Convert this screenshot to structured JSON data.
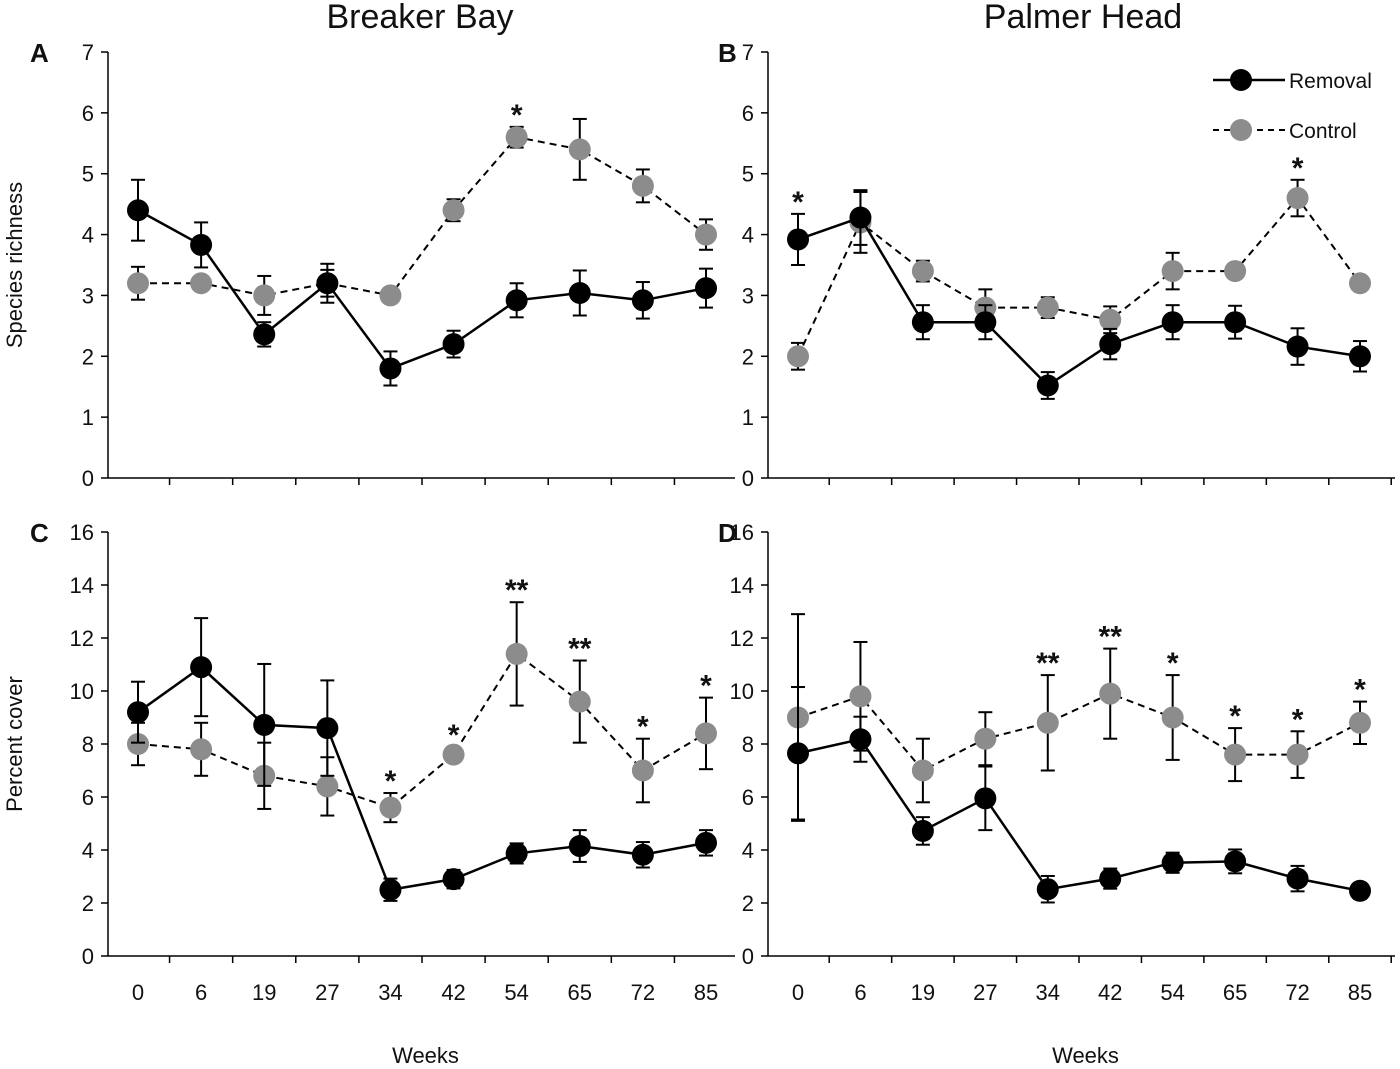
{
  "figure": {
    "columns": [
      "Breaker Bay",
      "Palmer Head"
    ],
    "legend": [
      {
        "label": "Removal",
        "color": "#000000",
        "dash": false
      },
      {
        "label": "Control",
        "color": "#8c8c8c",
        "dash": true
      }
    ],
    "xlabel": "Weeks",
    "colors": {
      "removal": "#000000",
      "control": "#8c8c8c"
    }
  },
  "chart_data": [
    {
      "panel": "A",
      "type": "line",
      "title": "Breaker Bay",
      "ylabel": "Species richness",
      "xlabel": "",
      "categories": [
        "0",
        "6",
        "19",
        "27",
        "34",
        "42",
        "54",
        "65",
        "72",
        "85"
      ],
      "ylim": [
        0,
        7
      ],
      "yticks": [
        0,
        1,
        2,
        3,
        4,
        5,
        6,
        7
      ],
      "series": [
        {
          "name": "Removal",
          "values": [
            4.4,
            3.83,
            2.36,
            3.2,
            1.8,
            2.2,
            2.92,
            3.04,
            2.92,
            3.12
          ],
          "errors": [
            0.5,
            0.37,
            0.2,
            0.22,
            0.28,
            0.22,
            0.28,
            0.37,
            0.3,
            0.32
          ]
        },
        {
          "name": "Control",
          "values": [
            3.2,
            3.2,
            3.0,
            3.2,
            3.0,
            4.4,
            5.6,
            5.4,
            4.8,
            4.0
          ],
          "errors": [
            0.27,
            0.05,
            0.32,
            0.32,
            0.05,
            0.18,
            0.17,
            0.5,
            0.27,
            0.25
          ]
        }
      ],
      "significance": [
        {
          "category": "54",
          "label": "*"
        }
      ]
    },
    {
      "panel": "B",
      "type": "line",
      "title": "Palmer Head",
      "ylabel": "",
      "xlabel": "",
      "categories": [
        "0",
        "6",
        "19",
        "27",
        "34",
        "42",
        "54",
        "65",
        "72",
        "85"
      ],
      "ylim": [
        0,
        7
      ],
      "yticks": [
        0,
        1,
        2,
        3,
        4,
        5,
        6,
        7
      ],
      "series": [
        {
          "name": "Removal",
          "values": [
            3.92,
            4.28,
            2.56,
            2.56,
            1.52,
            2.2,
            2.56,
            2.56,
            2.16,
            2.0
          ],
          "errors": [
            0.42,
            0.45,
            0.28,
            0.28,
            0.22,
            0.25,
            0.28,
            0.27,
            0.3,
            0.25
          ]
        },
        {
          "name": "Control",
          "values": [
            2.0,
            4.2,
            3.4,
            2.8,
            2.8,
            2.6,
            3.4,
            3.4,
            4.6,
            3.2
          ],
          "errors": [
            0.22,
            0.5,
            0.17,
            0.3,
            0.17,
            0.22,
            0.3,
            0.05,
            0.3,
            0.12
          ]
        }
      ],
      "significance": [
        {
          "category": "0",
          "label": "*"
        },
        {
          "category": "72",
          "label": "*"
        }
      ]
    },
    {
      "panel": "C",
      "type": "line",
      "title": "",
      "ylabel": "Percent cover",
      "xlabel": "Weeks",
      "categories": [
        "0",
        "6",
        "19",
        "27",
        "34",
        "42",
        "54",
        "65",
        "72",
        "85"
      ],
      "ylim": [
        0,
        16
      ],
      "yticks": [
        0,
        2,
        4,
        6,
        8,
        10,
        12,
        14,
        16
      ],
      "series": [
        {
          "name": "Removal",
          "values": [
            9.2,
            10.9,
            8.72,
            8.6,
            2.5,
            2.9,
            3.87,
            4.15,
            3.82,
            4.27
          ],
          "errors": [
            1.15,
            1.85,
            2.3,
            1.8,
            0.42,
            0.35,
            0.38,
            0.6,
            0.48,
            0.48
          ]
        },
        {
          "name": "Control",
          "values": [
            8.0,
            7.8,
            6.8,
            6.4,
            5.6,
            7.6,
            11.4,
            9.6,
            7.0,
            8.4
          ],
          "errors": [
            0.8,
            1.0,
            1.25,
            1.1,
            0.55,
            0.28,
            1.95,
            1.55,
            1.2,
            1.35
          ]
        }
      ],
      "significance": [
        {
          "category": "34",
          "label": "*"
        },
        {
          "category": "42",
          "label": "*"
        },
        {
          "category": "54",
          "label": "**"
        },
        {
          "category": "65",
          "label": "**"
        },
        {
          "category": "72",
          "label": "*"
        },
        {
          "category": "85",
          "label": "*"
        }
      ]
    },
    {
      "panel": "D",
      "type": "line",
      "title": "",
      "ylabel": "",
      "xlabel": "Weeks",
      "categories": [
        "0",
        "6",
        "19",
        "27",
        "34",
        "42",
        "54",
        "65",
        "72",
        "85"
      ],
      "ylim": [
        0,
        16
      ],
      "yticks": [
        0,
        2,
        4,
        6,
        8,
        10,
        12,
        14,
        16
      ],
      "series": [
        {
          "name": "Removal",
          "values": [
            7.65,
            8.18,
            4.72,
            5.95,
            2.52,
            2.92,
            3.52,
            3.57,
            2.92,
            2.46
          ],
          "errors": [
            2.5,
            0.85,
            0.52,
            1.2,
            0.5,
            0.38,
            0.38,
            0.45,
            0.48,
            0.3
          ]
        },
        {
          "name": "Control",
          "values": [
            9.0,
            9.8,
            7.0,
            8.2,
            8.8,
            9.9,
            9.0,
            7.6,
            7.6,
            8.8
          ],
          "errors": [
            3.9,
            2.05,
            1.2,
            1.0,
            1.8,
            1.7,
            1.6,
            1.0,
            0.88,
            0.8
          ]
        }
      ],
      "significance": [
        {
          "category": "34",
          "label": "**"
        },
        {
          "category": "42",
          "label": "**"
        },
        {
          "category": "54",
          "label": "*"
        },
        {
          "category": "65",
          "label": "*"
        },
        {
          "category": "72",
          "label": "*"
        },
        {
          "category": "85",
          "label": "*"
        }
      ]
    }
  ]
}
